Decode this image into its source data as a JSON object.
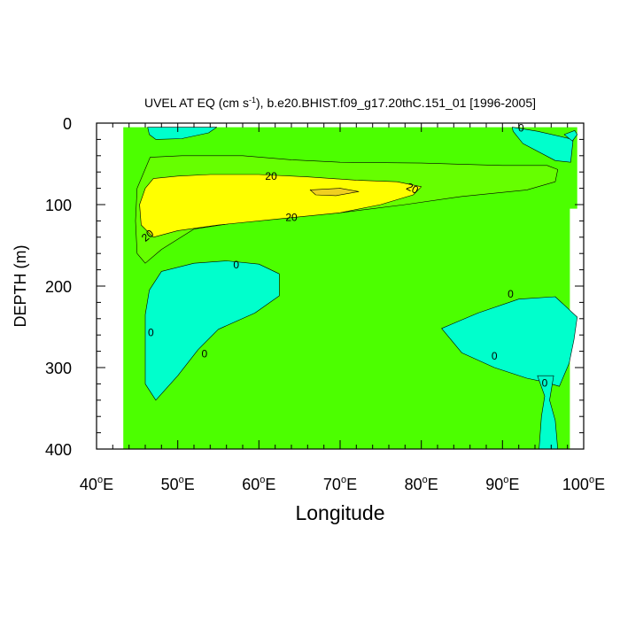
{
  "chart_data": {
    "type": "contour",
    "title_main": "UVEL AT EQ (cm s",
    "title_exp": "-1",
    "title_rest": "), b.e20.BHIST.f09_g17.20thC.151_01 [1996-2005]",
    "xlabel": "Longitude",
    "ylabel": "DEPTH (m)",
    "xlim": [
      40,
      100
    ],
    "ylim": [
      0,
      400
    ],
    "y_inverted": true,
    "x_ticks": [
      {
        "value": 40,
        "label": "40",
        "suffix": "E"
      },
      {
        "value": 50,
        "label": "50",
        "suffix": "E"
      },
      {
        "value": 60,
        "label": "60",
        "suffix": "E"
      },
      {
        "value": 70,
        "label": "70",
        "suffix": "E"
      },
      {
        "value": 80,
        "label": "80",
        "suffix": "E"
      },
      {
        "value": 90,
        "label": "90",
        "suffix": "E"
      },
      {
        "value": 100,
        "label": "100",
        "suffix": "E"
      }
    ],
    "y_ticks": [
      {
        "value": 0,
        "label": "0"
      },
      {
        "value": 100,
        "label": "100"
      },
      {
        "value": 200,
        "label": "200"
      },
      {
        "value": 300,
        "label": "300"
      },
      {
        "value": 400,
        "label": "400"
      }
    ],
    "contour_levels_labeled": [
      "0",
      "20"
    ],
    "colors": {
      "background_field": "#4cff00",
      "negative": "#00ffcc",
      "level_10_20": "#66ff00",
      "level_20_40": "#ffff00",
      "level_40_plus": "#f0d020",
      "outline": "#000000"
    },
    "regions": [
      {
        "name": "field",
        "level": "0-10",
        "color_key": "background_field",
        "points": [
          [
            43.3,
            5
          ],
          [
            99.2,
            5
          ],
          [
            99.2,
            105
          ],
          [
            98.3,
            105
          ],
          [
            98.3,
            400
          ],
          [
            43.3,
            400
          ]
        ]
      },
      {
        "name": "top-west-negative",
        "level": "<0",
        "color_key": "negative",
        "points": [
          [
            46.3,
            5
          ],
          [
            54.8,
            5
          ],
          [
            53.8,
            12
          ],
          [
            50.5,
            19
          ],
          [
            47.3,
            20
          ],
          [
            46.5,
            14
          ]
        ]
      },
      {
        "name": "jet-outer",
        "level": "10-20",
        "color_key": "level_10_20",
        "points": [
          [
            46.6,
            42
          ],
          [
            50.5,
            40
          ],
          [
            58,
            40
          ],
          [
            64,
            45
          ],
          [
            70,
            48
          ],
          [
            80,
            49
          ],
          [
            90,
            52
          ],
          [
            95.5,
            52
          ],
          [
            96.8,
            57
          ],
          [
            96.5,
            72
          ],
          [
            93,
            82
          ],
          [
            85,
            90
          ],
          [
            78,
            100
          ],
          [
            70,
            110
          ],
          [
            60,
            118
          ],
          [
            52,
            130
          ],
          [
            48,
            155
          ],
          [
            46,
            172
          ],
          [
            45,
            160
          ],
          [
            44.8,
            120
          ],
          [
            45,
            80
          ]
        ]
      },
      {
        "name": "jet-core",
        "level": "20-40",
        "color_key": "level_20_40",
        "points": [
          [
            47,
            68
          ],
          [
            50,
            65
          ],
          [
            54,
            63
          ],
          [
            60,
            63
          ],
          [
            66,
            66
          ],
          [
            72,
            70
          ],
          [
            77,
            72
          ],
          [
            80,
            78
          ],
          [
            79,
            88
          ],
          [
            75,
            100
          ],
          [
            70,
            110
          ],
          [
            62,
            118
          ],
          [
            55,
            125
          ],
          [
            50,
            132
          ],
          [
            47,
            140
          ],
          [
            45.5,
            125
          ],
          [
            45.3,
            100
          ],
          [
            46,
            80
          ]
        ]
      },
      {
        "name": "jet-max",
        "level": ">40",
        "color_key": "level_40_plus",
        "points": [
          [
            66.3,
            82
          ],
          [
            70,
            80
          ],
          [
            72.3,
            84
          ],
          [
            69.5,
            89
          ],
          [
            67,
            88
          ]
        ]
      },
      {
        "name": "west-negative",
        "level": "<0",
        "color_key": "negative",
        "points": [
          [
            48,
            182
          ],
          [
            52,
            172
          ],
          [
            56,
            169
          ],
          [
            60,
            173
          ],
          [
            62.5,
            185
          ],
          [
            62.5,
            212
          ],
          [
            59.5,
            233
          ],
          [
            55,
            253
          ],
          [
            52.5,
            278
          ],
          [
            50,
            310
          ],
          [
            47.3,
            340
          ],
          [
            46,
            320
          ],
          [
            46,
            275
          ],
          [
            46,
            235
          ],
          [
            46.5,
            205
          ]
        ]
      },
      {
        "name": "east-negative",
        "level": "<0",
        "color_key": "negative",
        "points": [
          [
            82.5,
            252
          ],
          [
            87,
            233
          ],
          [
            92,
            216
          ],
          [
            96.5,
            213
          ],
          [
            99.2,
            238
          ],
          [
            98.8,
            266
          ],
          [
            98.2,
            295
          ],
          [
            97,
            323
          ],
          [
            95.3,
            318
          ],
          [
            93,
            313
          ],
          [
            89,
            300
          ],
          [
            85,
            282
          ]
        ]
      },
      {
        "name": "east-negative-lower",
        "level": "<0",
        "color_key": "negative",
        "points": [
          [
            94.3,
            310
          ],
          [
            96.3,
            310
          ],
          [
            95.8,
            340
          ],
          [
            96.5,
            365
          ],
          [
            96.8,
            400
          ],
          [
            94.5,
            400
          ],
          [
            94.8,
            360
          ],
          [
            95.2,
            335
          ]
        ]
      },
      {
        "name": "top-east-negative",
        "level": "<0",
        "color_key": "negative",
        "points": [
          [
            91.2,
            5
          ],
          [
            94.3,
            10
          ],
          [
            98.7,
            20
          ],
          [
            98.4,
            48
          ],
          [
            96.5,
            46
          ],
          [
            92.5,
            25
          ],
          [
            91.3,
            10
          ]
        ]
      },
      {
        "name": "top-east-small",
        "level": "<0",
        "color_key": "negative",
        "points": [
          [
            97.6,
            14
          ],
          [
            98.9,
            9
          ],
          [
            99.2,
            14
          ],
          [
            98.6,
            22
          ]
        ]
      }
    ],
    "contour_labels": [
      {
        "text": "20",
        "x": 61.5,
        "y": 65,
        "angle": 0
      },
      {
        "text": "20",
        "x": 78.9,
        "y": 80,
        "angle": 25
      },
      {
        "text": "20",
        "x": 64,
        "y": 116,
        "angle": 0
      },
      {
        "text": "20",
        "x": 46.3,
        "y": 138,
        "angle": -40
      },
      {
        "text": "0",
        "x": 92.3,
        "y": 6,
        "angle": 0
      },
      {
        "text": "0",
        "x": 57.2,
        "y": 174,
        "angle": 0
      },
      {
        "text": "0",
        "x": 91,
        "y": 210,
        "angle": 0
      },
      {
        "text": "0",
        "x": 46.7,
        "y": 257,
        "angle": 0
      },
      {
        "text": "0",
        "x": 53.3,
        "y": 283,
        "angle": 0
      },
      {
        "text": "0",
        "x": 89,
        "y": 286,
        "angle": 0
      },
      {
        "text": "0",
        "x": 95.2,
        "y": 319,
        "angle": 0
      }
    ]
  }
}
